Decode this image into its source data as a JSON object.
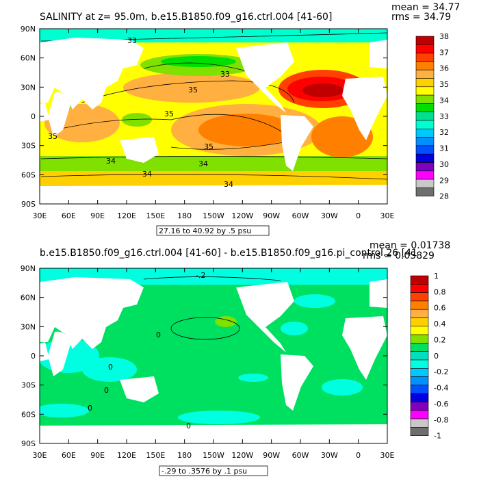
{
  "chart_data": [
    {
      "type": "heatmap",
      "title": "SALINITY at z=  95.0m, b.e15.B1850.f09_g16.ctrl.004  [41-60]",
      "mean_text": "mean = 34.77",
      "rms_text": "rms = 34.79",
      "range_note": "27.16 to 40.92 by .5 psu",
      "x_ticks": [
        "30E",
        "60E",
        "90E",
        "120E",
        "150E",
        "180",
        "150W",
        "120W",
        "90W",
        "60W",
        "30W",
        "0",
        "30E"
      ],
      "y_ticks": [
        "90N",
        "60N",
        "30N",
        "0",
        "30S",
        "60S",
        "90S"
      ],
      "colorbar": {
        "labels": [
          "38",
          "37",
          "36",
          "35",
          "34",
          "33",
          "32",
          "31",
          "30",
          "29",
          "28"
        ],
        "colors": [
          "#c00000",
          "#ff0000",
          "#ff4000",
          "#ff8000",
          "#ffb040",
          "#ffd000",
          "#ffff00",
          "#80e000",
          "#00e000",
          "#00e090",
          "#00ffd0",
          "#00c8ff",
          "#0090ff",
          "#0050ff",
          "#0000e0",
          "#8000c0",
          "#ff00ff",
          "#c8c8c8",
          "#6e6e6e"
        ]
      },
      "contour_labels": [
        "33",
        "33",
        "35",
        "35",
        "35",
        "35",
        "34",
        "34",
        "34",
        "34"
      ],
      "features": [
        {
          "name": "north-atlantic-max",
          "lon": -40,
          "lat": 25,
          "value": 37.5
        },
        {
          "name": "south-pacific-max",
          "lon": -125,
          "lat": -18,
          "value": 36.3
        },
        {
          "name": "north-pacific",
          "lon": -160,
          "lat": 40,
          "value": 33.5
        },
        {
          "name": "southern-ocean",
          "lon": 20,
          "lat": -55,
          "value": 34.2
        },
        {
          "name": "arctic",
          "lon": 60,
          "lat": 82,
          "value": 32.5
        }
      ]
    },
    {
      "type": "heatmap",
      "title": "b.e15.B1850.f09_g16.ctrl.004  [41-60] - b.e15.B1850.f09_g16.pi_control.26  [41",
      "mean_text": "mean = 0.01738",
      "rms_text": "rms = 0.05829",
      "range_note": "-.29 to .3576 by .1 psu",
      "x_ticks": [
        "30E",
        "60E",
        "90E",
        "120E",
        "150E",
        "180",
        "150W",
        "120W",
        "90W",
        "60W",
        "30W",
        "0",
        "30E"
      ],
      "y_ticks": [
        "90N",
        "60N",
        "30N",
        "0",
        "30S",
        "60S",
        "90S"
      ],
      "colorbar": {
        "labels": [
          "1",
          "0.8",
          "0.6",
          "0.4",
          "0.2",
          "0",
          "-0.2",
          "-0.4",
          "-0.6",
          "-0.8",
          "-1"
        ],
        "colors": [
          "#c00000",
          "#ff0000",
          "#ff4000",
          "#ff8000",
          "#ffb040",
          "#ffd000",
          "#ffff00",
          "#80e000",
          "#00e060",
          "#00e0c0",
          "#00ffe0",
          "#00c8ff",
          "#0090ff",
          "#0050ff",
          "#0000e0",
          "#8000c0",
          "#ff00ff",
          "#c8c8c8",
          "#6e6e6e"
        ]
      },
      "contour_labels": [
        "-.2",
        "0",
        "0",
        "0",
        "0",
        "0"
      ],
      "features": [
        {
          "name": "ocean-background",
          "value": 0.05
        },
        {
          "name": "arctic",
          "lon": 60,
          "lat": 82,
          "value": -0.15
        },
        {
          "name": "north-pacific",
          "lon": -160,
          "lat": 38,
          "value": 0.25
        },
        {
          "name": "indian-ocean",
          "lon": 80,
          "lat": -10,
          "value": -0.1
        },
        {
          "name": "southern-ocean",
          "lon": 0,
          "lat": -58,
          "value": 0.05
        }
      ]
    }
  ]
}
